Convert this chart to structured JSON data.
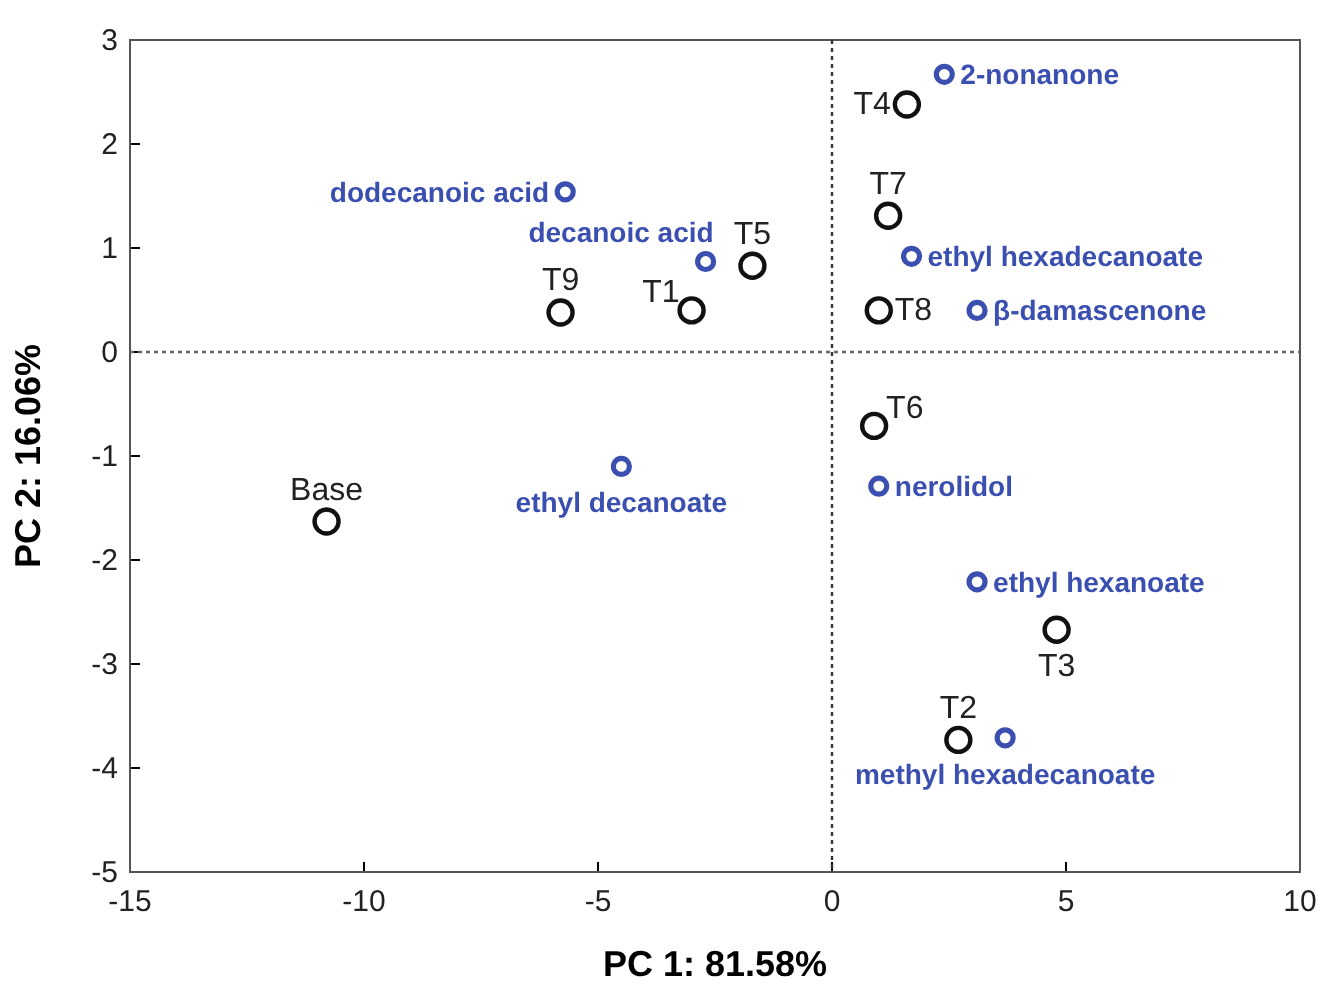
{
  "chart_data": {
    "type": "scatter",
    "xlabel": "PC 1: 81.58%",
    "ylabel": "PC 2: 16.06%",
    "xlim": [
      -15,
      10
    ],
    "xticks": [
      -15,
      -10,
      -5,
      0,
      5,
      10
    ],
    "ylim": [
      -5,
      3
    ],
    "yticks": [
      -5,
      -4,
      -3,
      -2,
      -1,
      0,
      1,
      2,
      3
    ],
    "marker": "circle",
    "ref_lines": [
      {
        "axis": "x",
        "value": 0,
        "line_style": "dotted",
        "color": "#333333"
      },
      {
        "axis": "y",
        "value": 0,
        "line_style": "dotted",
        "color": "#666666"
      }
    ],
    "series": [
      {
        "color": "#111111",
        "x": [
          1.6,
          1.2,
          1.0,
          -1.7,
          -3.0,
          -5.8,
          -10.8,
          0.9,
          4.8,
          2.7
        ],
        "values": [
          2.38,
          1.31,
          0.4,
          0.83,
          0.4,
          0.38,
          -1.63,
          -0.71,
          -2.67,
          -3.73
        ]
      },
      {
        "color": "#3a4fb0",
        "x": [
          2.4,
          -5.7,
          -2.7,
          1.7,
          3.1,
          -4.5,
          1.0,
          3.1,
          3.7
        ],
        "values": [
          2.67,
          1.54,
          0.87,
          0.92,
          0.4,
          -1.1,
          -1.29,
          -2.21,
          -3.71
        ]
      }
    ],
    "annotations": [
      {
        "text": "T4",
        "x": 1.6,
        "y": 2.38
      },
      {
        "text": "T7",
        "x": 1.2,
        "y": 1.31
      },
      {
        "text": "T8",
        "x": 1.0,
        "y": 0.4
      },
      {
        "text": "T5",
        "x": -1.7,
        "y": 0.83
      },
      {
        "text": "T1",
        "x": -3.0,
        "y": 0.4
      },
      {
        "text": "T9",
        "x": -5.8,
        "y": 0.38
      },
      {
        "text": "Base",
        "x": -10.8,
        "y": -1.63
      },
      {
        "text": "T6",
        "x": 0.9,
        "y": -0.71
      },
      {
        "text": "T3",
        "x": 4.8,
        "y": -2.67
      },
      {
        "text": "T2",
        "x": 2.7,
        "y": -3.73
      },
      {
        "text": "2-nonanone",
        "x": 2.4,
        "y": 2.67
      },
      {
        "text": "dodecanoic acid",
        "x": -5.7,
        "y": 1.54
      },
      {
        "text": "decanoic acid",
        "x": -2.7,
        "y": 0.87
      },
      {
        "text": "ethyl hexadecanoate",
        "x": 1.7,
        "y": 0.92
      },
      {
        "text": "β-damascenone",
        "x": 3.1,
        "y": 0.4
      },
      {
        "text": "ethyl decanoate",
        "x": -4.5,
        "y": -1.1
      },
      {
        "text": "nerolidol",
        "x": 1.0,
        "y": -1.29
      },
      {
        "text": "ethyl hexanoate",
        "x": 3.1,
        "y": -2.21
      },
      {
        "text": "methyl hexadecanoate",
        "x": 3.7,
        "y": -3.71
      }
    ]
  }
}
